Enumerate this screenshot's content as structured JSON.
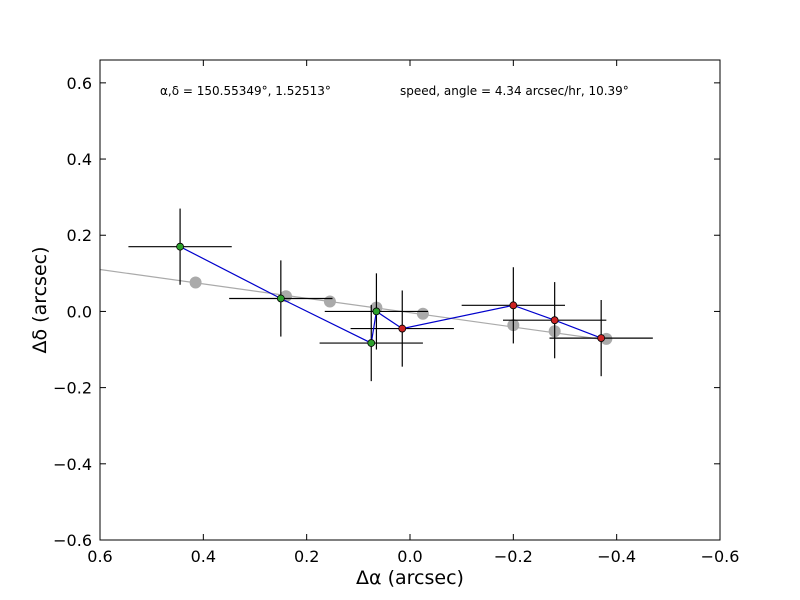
{
  "chart_data": {
    "type": "scatter",
    "title": "",
    "xlabel": "Δα (arcsec)",
    "ylabel": "Δδ (arcsec)",
    "xlim": [
      0.6,
      -0.6
    ],
    "ylim": [
      -0.6,
      0.66
    ],
    "x_inverted": true,
    "grid": false,
    "x_ticks": [
      0.6,
      0.4,
      0.2,
      0.0,
      -0.2,
      -0.4,
      -0.6
    ],
    "x_tick_labels": [
      "0.6",
      "0.4",
      "0.2",
      "0.0",
      "−0.2",
      "−0.4",
      "−0.6"
    ],
    "y_ticks": [
      0.6,
      0.4,
      0.2,
      0.0,
      -0.2,
      -0.4,
      -0.6
    ],
    "y_tick_labels": [
      "0.6",
      "0.4",
      "0.2",
      "0.0",
      "−0.2",
      "−0.4",
      "−0.6"
    ],
    "annotations": [
      "α,δ = 150.55349°, 1.52513°",
      "speed, angle = 4.34 arcsec/hr, 10.39°"
    ],
    "fit_line": {
      "color": "#aaaaaa",
      "points": [
        [
          0.6,
          0.11
        ],
        [
          -0.38,
          -0.075
        ]
      ]
    },
    "predicted_points": {
      "color": "#aaaaaa",
      "points": [
        [
          0.415,
          0.076
        ],
        [
          0.24,
          0.04
        ],
        [
          0.155,
          0.026
        ],
        [
          0.065,
          0.01
        ],
        [
          -0.025,
          -0.006
        ],
        [
          -0.2,
          -0.036
        ],
        [
          -0.28,
          -0.052
        ],
        [
          -0.38,
          -0.072
        ]
      ]
    },
    "path": {
      "color": "#0000cc",
      "order": [
        0,
        1,
        2,
        3,
        4,
        5,
        6,
        7
      ]
    },
    "observations": [
      {
        "x": 0.445,
        "y": 0.17,
        "xerr": 0.1,
        "yerr": 0.1,
        "color": "#2ca02c"
      },
      {
        "x": 0.25,
        "y": 0.034,
        "xerr": 0.1,
        "yerr": 0.1,
        "color": "#2ca02c"
      },
      {
        "x": 0.075,
        "y": -0.083,
        "xerr": 0.1,
        "yerr": 0.1,
        "color": "#2ca02c"
      },
      {
        "x": 0.065,
        "y": 0.0,
        "xerr": 0.1,
        "yerr": 0.1,
        "color": "#2ca02c"
      },
      {
        "x": 0.015,
        "y": -0.045,
        "xerr": 0.1,
        "yerr": 0.1,
        "color": "#cc2222"
      },
      {
        "x": -0.2,
        "y": 0.016,
        "xerr": 0.1,
        "yerr": 0.1,
        "color": "#cc2222"
      },
      {
        "x": -0.28,
        "y": -0.023,
        "xerr": 0.1,
        "yerr": 0.1,
        "color": "#cc2222"
      },
      {
        "x": -0.37,
        "y": -0.07,
        "xerr": 0.1,
        "yerr": 0.1,
        "color": "#cc2222"
      }
    ]
  }
}
